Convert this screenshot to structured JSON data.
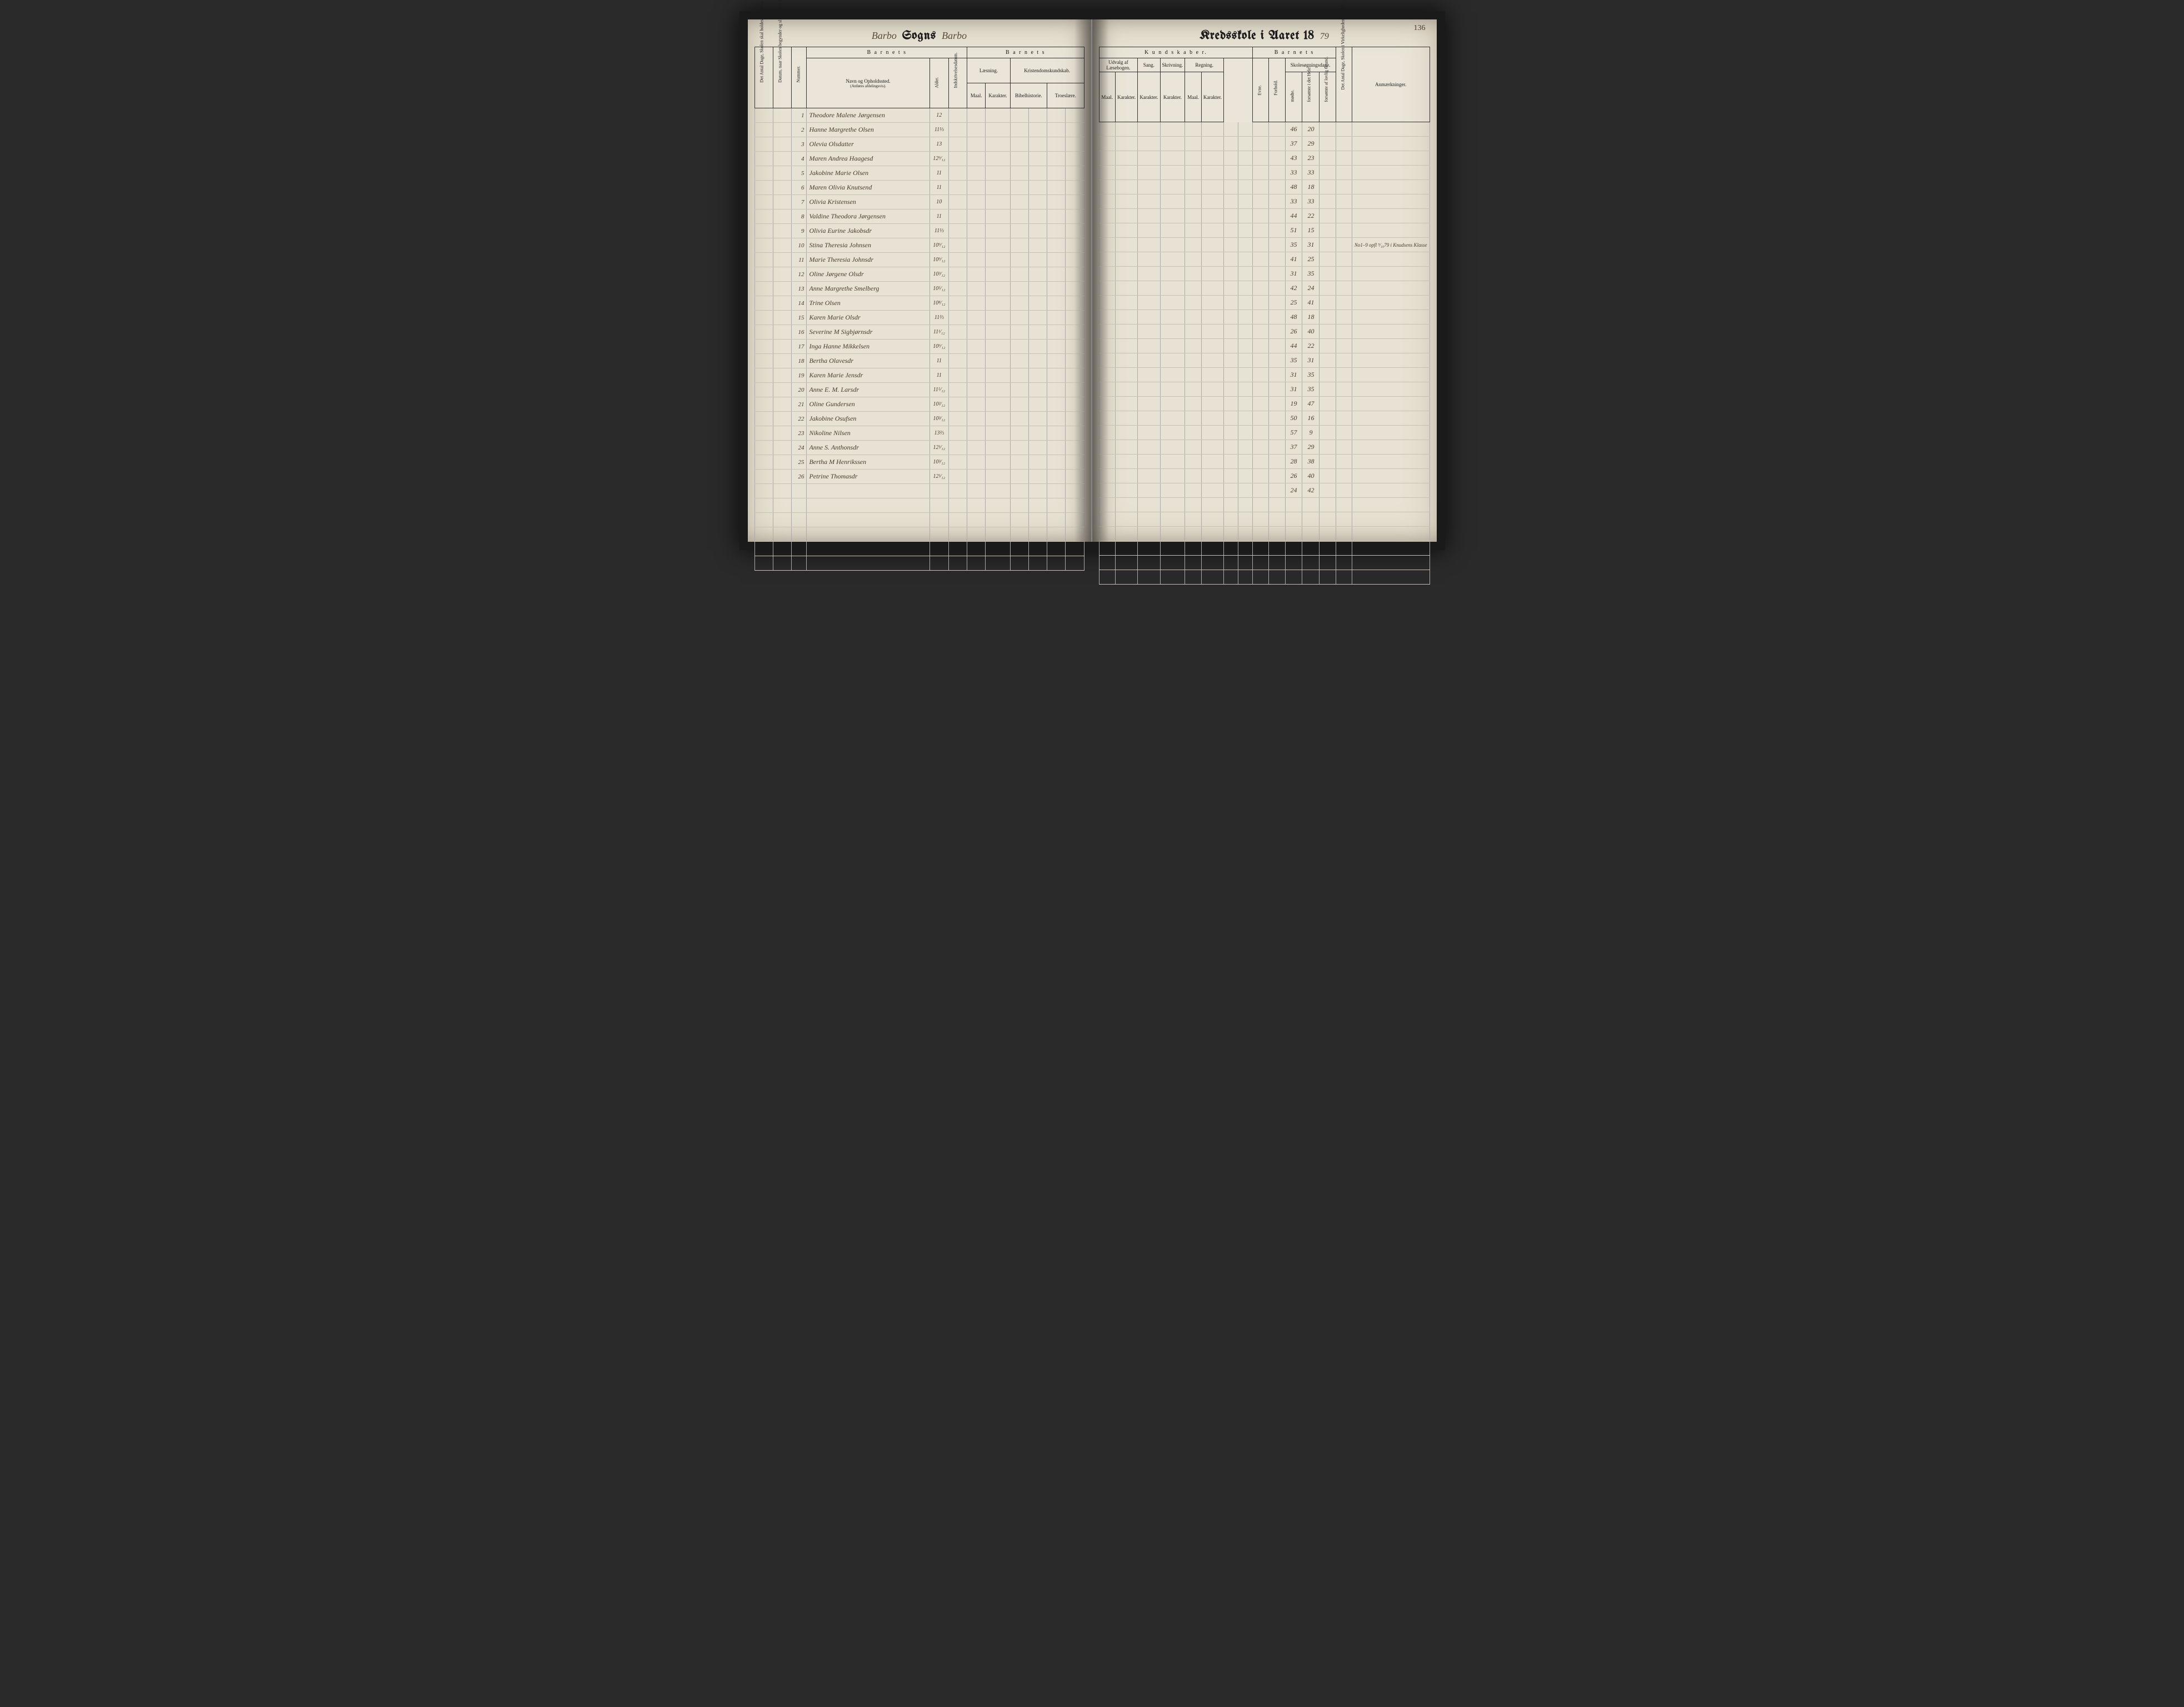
{
  "pageNumber": "136",
  "leftHeader": {
    "script1": "Barbo",
    "gothic": "Sogns",
    "script2": "Barbo"
  },
  "rightHeader": {
    "gothic": "Kredsskole i Aaret 18",
    "year": "79"
  },
  "leftColumns": {
    "rot1": "Det Antal Dage, Skolen skal holdes i Kredsen.",
    "rot2": "Datum, naar Skolen begynder og slutter hver Omgang.",
    "rot3": "Nummer.",
    "groupBarnets": "B a r n e t s",
    "navn": "Navn og Opholdssted.",
    "navnSub": "(Anføres afdelingsvis).",
    "alder": "Alder.",
    "indskr": "Indskrivelsesdatum.",
    "groupBarnets2": "B a r n e t s",
    "laesning": "Læsning.",
    "kristendom": "Kristendomskundskab.",
    "bibel": "Bibelhistorie.",
    "troes": "Troeslære.",
    "maal": "Maal.",
    "karakter": "Karakter."
  },
  "rightColumns": {
    "kundskaber": "K u n d s k a b e r.",
    "udvalg": "Udvalg af Læsebogen.",
    "sang": "Sang.",
    "skriv": "Skrivning.",
    "regning": "Regning.",
    "groupBarnets": "B a r n e t s",
    "evne": "Evne.",
    "forhold": "Forhold.",
    "skolesog": "Skolesøgningsdage.",
    "modte": "mødte.",
    "forsomt1": "forsømte i det Hele.",
    "forsomt2": "forsømte af lovlig Grund.",
    "detAntal": "Det Antal Dage, Skolen i Virkeligheden er holdt.",
    "anm": "Anmærkninger.",
    "maal": "Maal.",
    "karakter": "Karakter."
  },
  "rows": [
    {
      "n": "1",
      "name": "Theodore Malene Jørgensen",
      "age": "12",
      "m": "46",
      "f": "20",
      "r": ""
    },
    {
      "n": "2",
      "name": "Hanne Margrethe Olsen",
      "age": "11⅓",
      "m": "37",
      "f": "29",
      "r": ""
    },
    {
      "n": "3",
      "name": "Olevia Olsdatter",
      "age": "13",
      "m": "43",
      "f": "23",
      "r": ""
    },
    {
      "n": "4",
      "name": "Maren Andrea Haagesd",
      "age": "12⁹⁄₁₂",
      "m": "33",
      "f": "33",
      "r": ""
    },
    {
      "n": "5",
      "name": "Jakobine Marie Olsen",
      "age": "11",
      "m": "48",
      "f": "18",
      "r": ""
    },
    {
      "n": "6",
      "name": "Maren Olivia Knutsend",
      "age": "11",
      "m": "33",
      "f": "33",
      "r": ""
    },
    {
      "n": "7",
      "name": "Olivia Kristensen",
      "age": "10",
      "m": "44",
      "f": "22",
      "r": ""
    },
    {
      "n": "8",
      "name": "Valdine Theodora Jørgensen",
      "age": "11",
      "m": "51",
      "f": "15",
      "r": ""
    },
    {
      "n": "9",
      "name": "Olivia Eurine Jakobsdr",
      "age": "11⅓",
      "m": "35",
      "f": "31",
      "r": "No1–9 opfl ⁹⁄₁₀79 i Knudsens Klasse"
    },
    {
      "n": "10",
      "name": "Stina Theresia Johnsen",
      "age": "10⁹⁄₁₂",
      "m": "41",
      "f": "25",
      "r": ""
    },
    {
      "n": "11",
      "name": "Marie Theresia Johnsdr",
      "age": "10⁹⁄₁₂",
      "m": "31",
      "f": "35",
      "r": ""
    },
    {
      "n": "12",
      "name": "Oline Jørgene Olsdr",
      "age": "10³⁄₁₂",
      "m": "42",
      "f": "24",
      "r": ""
    },
    {
      "n": "13",
      "name": "Anne Margrethe Smelberg",
      "age": "10⁵⁄₁₂",
      "m": "25",
      "f": "41",
      "r": ""
    },
    {
      "n": "14",
      "name": "Trine Olsen",
      "age": "10⁸⁄₁₂",
      "m": "48",
      "f": "18",
      "r": ""
    },
    {
      "n": "15",
      "name": "Karen Marie Olsdr",
      "age": "11⅔",
      "m": "26",
      "f": "40",
      "r": ""
    },
    {
      "n": "16",
      "name": "Severine M Sigbjørnsdr",
      "age": "11¹⁄₁₂",
      "m": "44",
      "f": "22",
      "r": ""
    },
    {
      "n": "17",
      "name": "Inga Hanne Mikkelsen",
      "age": "10⁹⁄₁₂",
      "m": "35",
      "f": "31",
      "r": ""
    },
    {
      "n": "18",
      "name": "Bertha Olavesdr",
      "age": "11",
      "m": "31",
      "f": "35",
      "r": ""
    },
    {
      "n": "19",
      "name": "Karen Marie Jensdr",
      "age": "11",
      "m": "31",
      "f": "35",
      "r": ""
    },
    {
      "n": "20",
      "name": "Anne E. M. Larsdr",
      "age": "11⁵⁄₁₂",
      "m": "19",
      "f": "47",
      "r": ""
    },
    {
      "n": "21",
      "name": "Oline Gundersen",
      "age": "10²⁄₁₂",
      "m": "50",
      "f": "16",
      "r": ""
    },
    {
      "n": "22",
      "name": "Jakobine Osufsen",
      "age": "10³⁄₁₂",
      "m": "57",
      "f": "9",
      "r": ""
    },
    {
      "n": "23",
      "name": "Nikoline Nilsen",
      "age": "13⅔",
      "m": "37",
      "f": "29",
      "r": ""
    },
    {
      "n": "24",
      "name": "Anne S. Anthonsdr",
      "age": "12¹⁄₁₂",
      "m": "28",
      "f": "38",
      "r": ""
    },
    {
      "n": "25",
      "name": "Bertha M Henrikssen",
      "age": "10³⁄₁₂",
      "m": "26",
      "f": "40",
      "r": ""
    },
    {
      "n": "26",
      "name": "Petrine Thomasdr",
      "age": "12¹⁄₁₂",
      "m": "24",
      "f": "42",
      "r": ""
    }
  ],
  "emptyRowsAfter": 6
}
